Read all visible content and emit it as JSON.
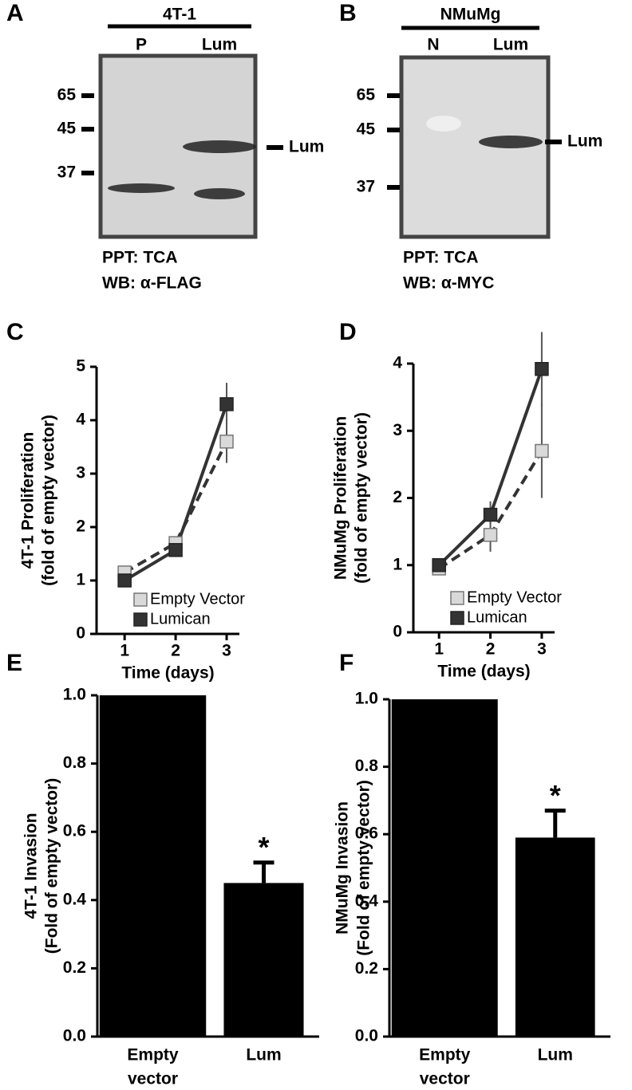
{
  "blots": [
    {
      "panel": "A",
      "cell_line": "4T-1",
      "lanes": [
        "P",
        "Lum"
      ],
      "markers": [
        65,
        45,
        37
      ],
      "band_label": "Lum",
      "caption": [
        "PPT: TCA",
        "WB: α-FLAG"
      ]
    },
    {
      "panel": "B",
      "cell_line": "NMuMg",
      "lanes": [
        "N",
        "Lum"
      ],
      "markers": [
        65,
        45,
        37
      ],
      "band_label": "Lum",
      "caption": [
        "PPT: TCA",
        "WB: α-MYC"
      ]
    }
  ],
  "chart_data": [
    {
      "type": "line",
      "panel": "C",
      "ylabel": [
        "4T-1 Proliferation",
        "(fold of empty vector)"
      ],
      "xlabel": "Time (days)",
      "x": [
        1,
        2,
        3
      ],
      "xlim": [
        0.45,
        3.25
      ],
      "xticks": [
        1,
        2,
        3
      ],
      "ylim": [
        0,
        5
      ],
      "yticks": [
        0,
        1,
        2,
        3,
        4,
        5
      ],
      "legend": "lower right",
      "series": [
        {
          "name": "Empty Vector",
          "color": "#d9d9d9",
          "line_style": "dashed",
          "values": [
            1.15,
            1.7,
            3.6
          ],
          "errors": [
            0.1,
            0.1,
            0.4
          ]
        },
        {
          "name": "Lumican",
          "color": "#333333",
          "line_style": "solid",
          "values": [
            1.0,
            1.57,
            4.3
          ],
          "errors": [
            0.05,
            0.1,
            0.4
          ]
        }
      ]
    },
    {
      "type": "line",
      "panel": "D",
      "ylabel": [
        "NMuMg Proliferation",
        "(fold of empty vector)"
      ],
      "xlabel": "Time (days)",
      "x": [
        1,
        2,
        3
      ],
      "xlim": [
        0.5,
        3.25
      ],
      "xticks": [
        1,
        2,
        3
      ],
      "ylim": [
        0,
        4
      ],
      "yticks": [
        0,
        1,
        2,
        3,
        4
      ],
      "legend": "lower right",
      "series": [
        {
          "name": "Empty Vector",
          "color": "#d9d9d9",
          "line_style": "dashed",
          "values": [
            0.95,
            1.45,
            2.7
          ],
          "errors": [
            0.05,
            0.25,
            0.7
          ]
        },
        {
          "name": "Lumican",
          "color": "#333333",
          "line_style": "solid",
          "values": [
            1.0,
            1.75,
            3.92
          ],
          "errors": [
            0.05,
            0.2,
            0.55
          ]
        }
      ]
    },
    {
      "type": "bar",
      "panel": "E",
      "ylabel": [
        "4T-1 Invasion",
        "(Fold of empty vector)"
      ],
      "categories": [
        [
          "Empty",
          "vector"
        ],
        [
          "Lum"
        ]
      ],
      "values": [
        1.0,
        0.45
      ],
      "errors": [
        null,
        0.06
      ],
      "significance": [
        null,
        "*"
      ],
      "color": "#000000",
      "ylim": [
        0,
        1.0
      ],
      "yticks": [
        {
          "value": 0,
          "label": "0.0"
        },
        {
          "value": 0.2,
          "label": "0.2"
        },
        {
          "value": 0.4,
          "label": "0.4"
        },
        {
          "value": 0.6,
          "label": "0.6"
        },
        {
          "value": 0.8,
          "label": "0.8"
        },
        {
          "value": 1,
          "label": "1.0"
        }
      ]
    },
    {
      "type": "bar",
      "panel": "F",
      "ylabel": [
        "NMuMg Invasion",
        "(Fold of empty vector)"
      ],
      "categories": [
        [
          "Empty",
          "vector"
        ],
        [
          "Lum"
        ]
      ],
      "values": [
        1.0,
        0.59
      ],
      "errors": [
        null,
        0.08
      ],
      "significance": [
        null,
        "*"
      ],
      "color": "#000000",
      "ylim": [
        0,
        1.0
      ],
      "yticks": [
        {
          "value": 0,
          "label": "0.0"
        },
        {
          "value": 0.2,
          "label": "0.2"
        },
        {
          "value": 0.4,
          "label": "0.4"
        },
        {
          "value": 0.6,
          "label": "0.6"
        },
        {
          "value": 0.8,
          "label": "0.8"
        },
        {
          "value": 1,
          "label": "1.0"
        }
      ]
    }
  ]
}
